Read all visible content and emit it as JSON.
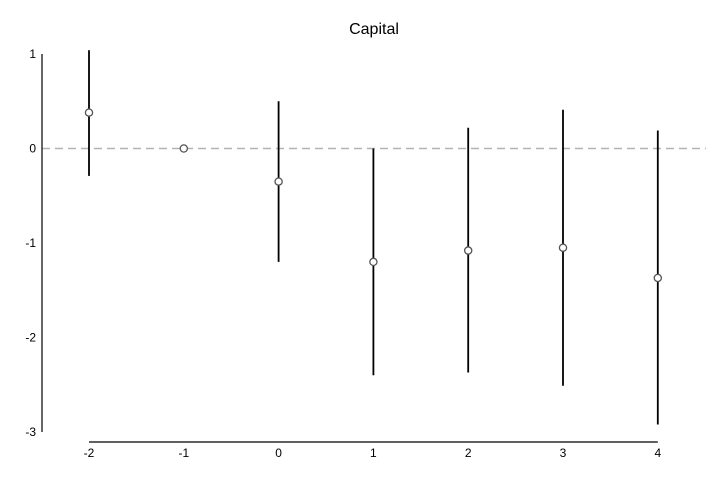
{
  "chart_data": {
    "type": "scatter",
    "title": "Capital",
    "xlabel": "",
    "ylabel": "",
    "x": [
      -2,
      -1,
      0,
      1,
      2,
      3,
      4
    ],
    "y": [
      0.38,
      0.0,
      -0.35,
      -1.2,
      -1.08,
      -1.05,
      -1.37
    ],
    "ci_low": [
      -0.29,
      null,
      -1.2,
      -2.4,
      -2.37,
      -2.51,
      -2.92
    ],
    "ci_high": [
      1.04,
      null,
      0.5,
      0.0,
      0.22,
      0.41,
      0.19
    ],
    "x_ticks": [
      "-2",
      "-1",
      "0",
      "1",
      "2",
      "3",
      "4"
    ],
    "y_ticks": [
      "1",
      "0",
      "-1",
      "-2",
      "-3"
    ],
    "xlim": [
      -2,
      4
    ],
    "ylim": [
      -3,
      1
    ],
    "reference_line": {
      "y": 0,
      "style": "dashed",
      "color": "#b3b3b3"
    },
    "grid": false,
    "colors": {
      "marker": "#555555",
      "error_bar": "#000000",
      "axis": "#000000"
    }
  }
}
